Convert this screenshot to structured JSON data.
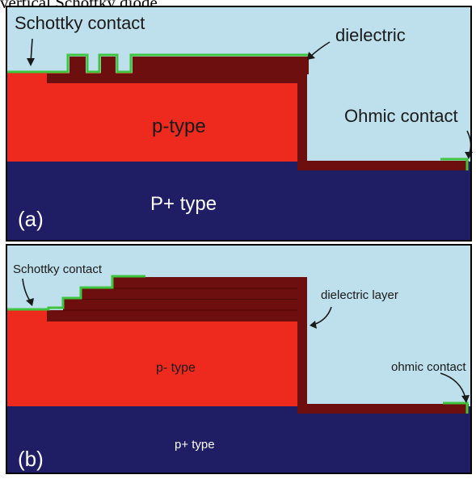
{
  "caption": "vertical Schottky diode.",
  "colors": {
    "air": "#bde0ec",
    "p_type": "#ee2a1e",
    "p_plus": "#1f1d63",
    "dielectric": "#6e0f0f",
    "contact": "#3fc43f",
    "frame": "#000000",
    "text_light": "#ffffff",
    "text_dark": "#1a1a1a"
  },
  "panel_a": {
    "tag": "(a)",
    "schottky_label": "Schottky contact",
    "dielectric_label": "dielectric",
    "ohmic_label": "Ohmic contact",
    "p_label": "p-type",
    "p_plus_label": "P+ type"
  },
  "panel_b": {
    "tag": "(b)",
    "schottky_label": "Schottky contact",
    "dielectric_label": "dielectric layer",
    "ohmic_label": "ohmic contact",
    "p_label": "p- type",
    "p_plus_label": "p+ type"
  }
}
